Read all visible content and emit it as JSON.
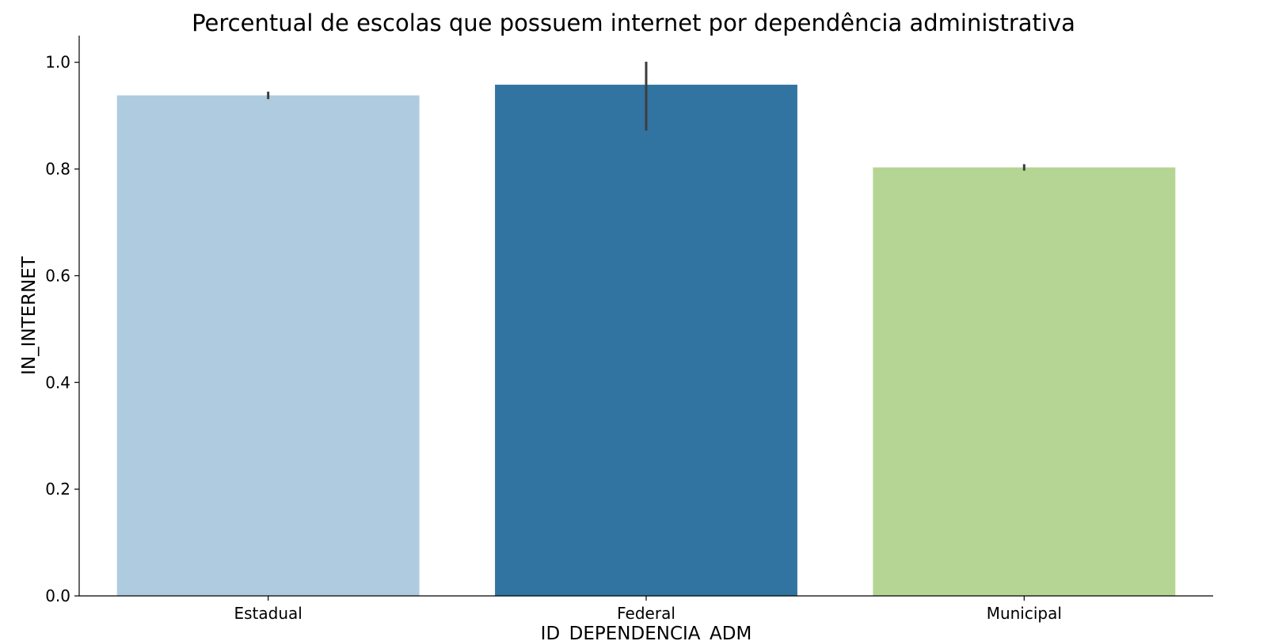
{
  "chart_data": {
    "type": "bar",
    "title": "Percentual de escolas que possuem internet por dependência administrativa",
    "xlabel": "ID_DEPENDENCIA_ADM",
    "ylabel": "IN_INTERNET",
    "categories": [
      "Estadual",
      "Federal",
      "Municipal"
    ],
    "values": [
      0.938,
      0.958,
      0.803
    ],
    "error_bars": [
      [
        0.931,
        0.945
      ],
      [
        0.872,
        1.001
      ],
      [
        0.797,
        0.809
      ]
    ],
    "colors": [
      "#aecbdf",
      "#3274a1",
      "#b4d593"
    ],
    "ylim": [
      0,
      1.05
    ],
    "yticks": [
      0.0,
      0.2,
      0.4,
      0.6,
      0.8,
      1.0
    ],
    "ytick_labels": [
      "0.0",
      "0.2",
      "0.4",
      "0.6",
      "0.8",
      "1.0"
    ],
    "grid": false,
    "legend": "none"
  }
}
